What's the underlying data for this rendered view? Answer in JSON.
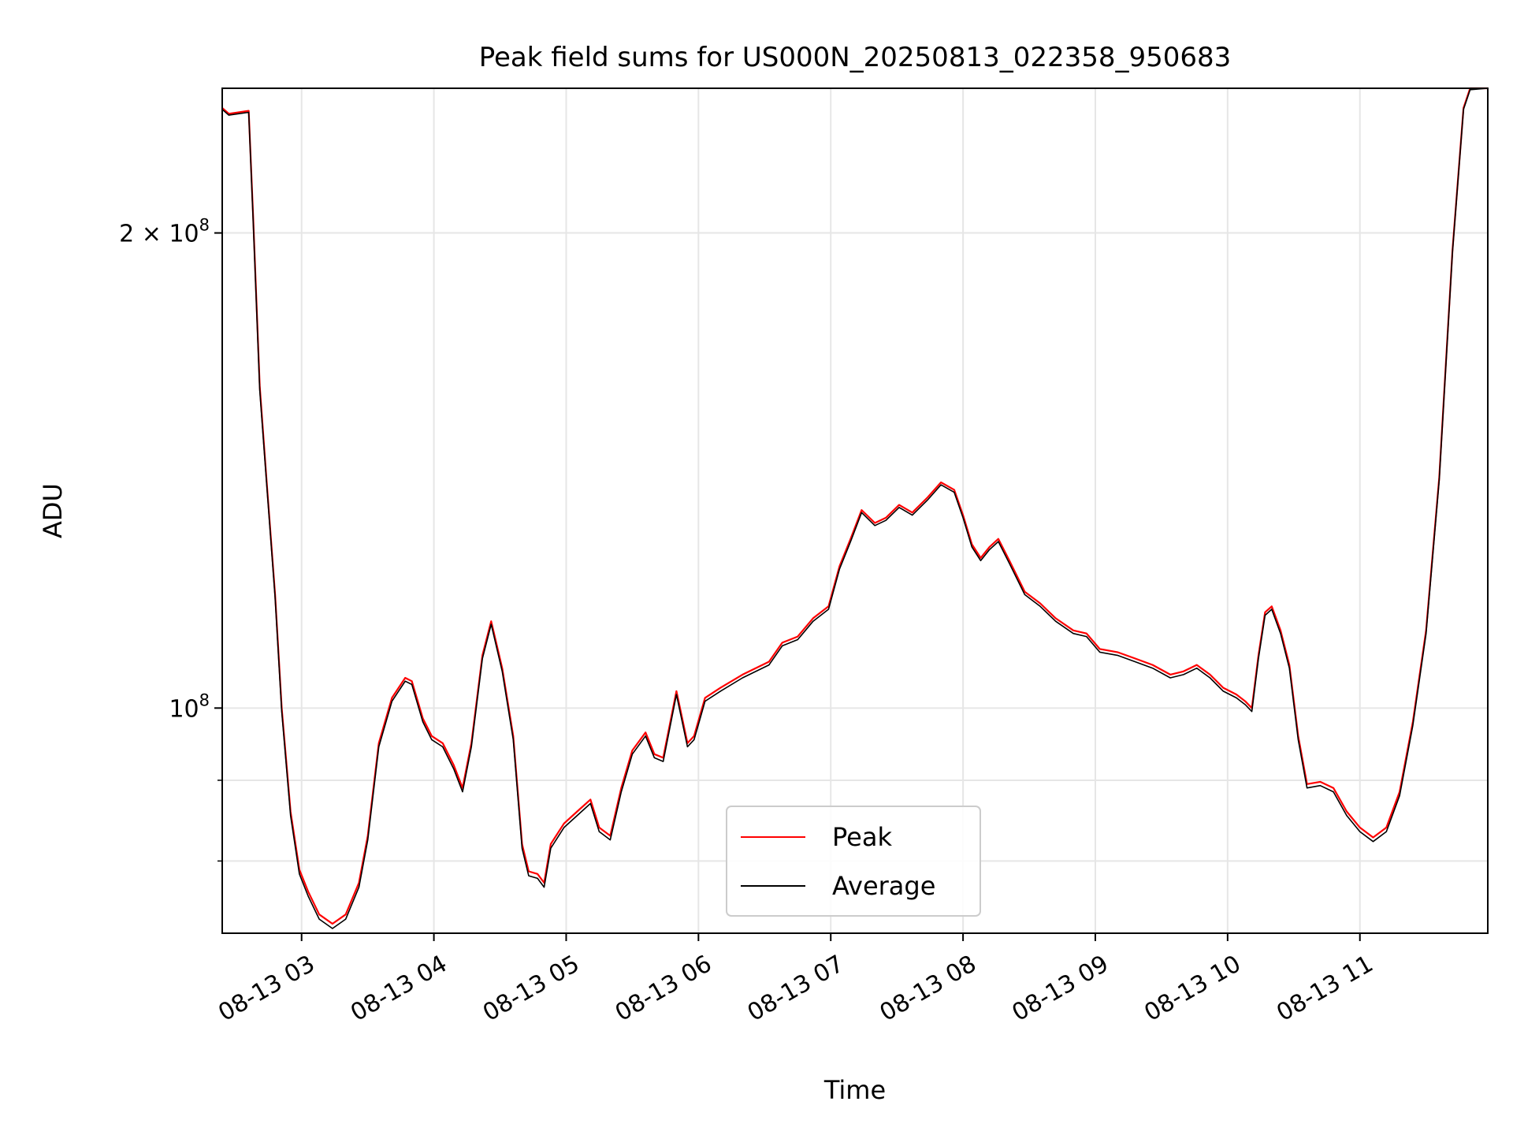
{
  "chart_data": {
    "type": "line",
    "title": "Peak field sums for US000N_20250813_022358_950683",
    "xlabel": "Time",
    "ylabel": "ADU",
    "x_scale": "time",
    "y_scale": "log",
    "xlim": [
      "2025-08-13 02:24",
      "2025-08-13 11:58"
    ],
    "ylim": [
      72000000,
      247000000
    ],
    "x_ticks": [
      "08-13 03",
      "08-13 04",
      "08-13 05",
      "08-13 06",
      "08-13 07",
      "08-13 08",
      "08-13 09",
      "08-13 10",
      "08-13 11"
    ],
    "y_ticks": [
      {
        "value": 100000000,
        "base": "10",
        "exp": "8",
        "coef": ""
      },
      {
        "value": 200000000,
        "base": "10",
        "exp": "8",
        "coef": "2 × "
      }
    ],
    "y_minor_ticks": [
      80000000,
      90000000
    ],
    "grid": true,
    "legend_position": "lower-center",
    "series": [
      {
        "name": "Peak",
        "color": "#ff0000",
        "points": [
          [
            "02:24",
            240000000
          ],
          [
            "02:27",
            238000000
          ],
          [
            "02:36",
            239000000
          ],
          [
            "02:38",
            205000000
          ],
          [
            "02:41",
            160000000
          ],
          [
            "02:44",
            140000000
          ],
          [
            "02:48",
            118000000
          ],
          [
            "02:51",
            100000000
          ],
          [
            "02:55",
            86000000
          ],
          [
            "02:59",
            79000000
          ],
          [
            "03:03",
            76500000
          ],
          [
            "03:08",
            74000000
          ],
          [
            "03:14",
            73000000
          ],
          [
            "03:20",
            74000000
          ],
          [
            "03:26",
            77500000
          ],
          [
            "03:30",
            83000000
          ],
          [
            "03:35",
            95000000
          ],
          [
            "03:41",
            101500000
          ],
          [
            "03:47",
            104500000
          ],
          [
            "03:50",
            104000000
          ],
          [
            "03:55",
            98500000
          ],
          [
            "03:59",
            96000000
          ],
          [
            "04:04",
            95000000
          ],
          [
            "04:09",
            92000000
          ],
          [
            "04:13",
            89000000
          ],
          [
            "04:17",
            95000000
          ],
          [
            "04:22",
            108000000
          ],
          [
            "04:26",
            113500000
          ],
          [
            "04:31",
            106000000
          ],
          [
            "04:36",
            96000000
          ],
          [
            "04:40",
            82000000
          ],
          [
            "04:43",
            78800000
          ],
          [
            "04:47",
            78500000
          ],
          [
            "04:50",
            77500000
          ],
          [
            "04:53",
            82000000
          ],
          [
            "04:59",
            84500000
          ],
          [
            "05:05",
            86000000
          ],
          [
            "05:11",
            87500000
          ],
          [
            "05:15",
            84000000
          ],
          [
            "05:20",
            83000000
          ],
          [
            "05:25",
            89000000
          ],
          [
            "05:30",
            94000000
          ],
          [
            "05:36",
            96500000
          ],
          [
            "05:40",
            93500000
          ],
          [
            "05:44",
            93000000
          ],
          [
            "05:50",
            102500000
          ],
          [
            "05:55",
            95000000
          ],
          [
            "05:58",
            96000000
          ],
          [
            "06:03",
            101500000
          ],
          [
            "06:10",
            103000000
          ],
          [
            "06:20",
            105000000
          ],
          [
            "06:32",
            107000000
          ],
          [
            "06:38",
            110000000
          ],
          [
            "06:45",
            111000000
          ],
          [
            "06:52",
            114000000
          ],
          [
            "06:59",
            116000000
          ],
          [
            "07:04",
            123000000
          ],
          [
            "07:09",
            128000000
          ],
          [
            "07:14",
            133500000
          ],
          [
            "07:20",
            131000000
          ],
          [
            "07:25",
            132000000
          ],
          [
            "07:31",
            134500000
          ],
          [
            "07:37",
            133000000
          ],
          [
            "07:44",
            136000000
          ],
          [
            "07:50",
            139000000
          ],
          [
            "07:56",
            137500000
          ],
          [
            "08:00",
            132500000
          ],
          [
            "08:04",
            127000000
          ],
          [
            "08:08",
            124500000
          ],
          [
            "08:12",
            126500000
          ],
          [
            "08:16",
            128000000
          ],
          [
            "08:21",
            124000000
          ],
          [
            "08:28",
            118500000
          ],
          [
            "08:35",
            116500000
          ],
          [
            "08:42",
            114000000
          ],
          [
            "08:50",
            112000000
          ],
          [
            "08:56",
            111500000
          ],
          [
            "09:02",
            109000000
          ],
          [
            "09:10",
            108500000
          ],
          [
            "09:18",
            107500000
          ],
          [
            "09:26",
            106500000
          ],
          [
            "09:34",
            105000000
          ],
          [
            "09:40",
            105500000
          ],
          [
            "09:46",
            106500000
          ],
          [
            "09:52",
            105000000
          ],
          [
            "09:58",
            103000000
          ],
          [
            "10:04",
            102000000
          ],
          [
            "10:08",
            101000000
          ],
          [
            "10:11",
            100000000
          ],
          [
            "10:14",
            108000000
          ],
          [
            "10:17",
            115000000
          ],
          [
            "10:20",
            116000000
          ],
          [
            "10:24",
            112000000
          ],
          [
            "10:28",
            106500000
          ],
          [
            "10:32",
            96000000
          ],
          [
            "10:36",
            89500000
          ],
          [
            "10:42",
            89800000
          ],
          [
            "10:48",
            89000000
          ],
          [
            "10:54",
            86000000
          ],
          [
            "11:00",
            84000000
          ],
          [
            "11:06",
            82800000
          ],
          [
            "11:12",
            84000000
          ],
          [
            "11:18",
            88500000
          ],
          [
            "11:24",
            98000000
          ],
          [
            "11:30",
            112000000
          ],
          [
            "11:36",
            140000000
          ],
          [
            "11:42",
            195000000
          ],
          [
            "11:47",
            240000000
          ],
          [
            "11:50",
            247000000
          ],
          [
            "11:58",
            247000000
          ]
        ]
      },
      {
        "name": "Average",
        "color": "#000000",
        "points": [
          [
            "02:24",
            239500000
          ],
          [
            "02:27",
            237500000
          ],
          [
            "02:36",
            238500000
          ],
          [
            "02:38",
            204000000
          ],
          [
            "02:41",
            159000000
          ],
          [
            "02:44",
            139500000
          ],
          [
            "02:48",
            117500000
          ],
          [
            "02:51",
            99500000
          ],
          [
            "02:55",
            85500000
          ],
          [
            "02:59",
            78500000
          ],
          [
            "03:03",
            76000000
          ],
          [
            "03:08",
            73500000
          ],
          [
            "03:14",
            72500000
          ],
          [
            "03:20",
            73500000
          ],
          [
            "03:26",
            77000000
          ],
          [
            "03:30",
            82500000
          ],
          [
            "03:35",
            94500000
          ],
          [
            "03:41",
            101000000
          ],
          [
            "03:47",
            104000000
          ],
          [
            "03:50",
            103500000
          ],
          [
            "03:55",
            98000000
          ],
          [
            "03:59",
            95500000
          ],
          [
            "04:04",
            94500000
          ],
          [
            "04:09",
            91500000
          ],
          [
            "04:13",
            88500000
          ],
          [
            "04:17",
            94500000
          ],
          [
            "04:22",
            107500000
          ],
          [
            "04:26",
            113000000
          ],
          [
            "04:31",
            105500000
          ],
          [
            "04:36",
            95500000
          ],
          [
            "04:40",
            81500000
          ],
          [
            "04:43",
            78300000
          ],
          [
            "04:47",
            78000000
          ],
          [
            "04:50",
            77000000
          ],
          [
            "04:53",
            81500000
          ],
          [
            "04:59",
            84000000
          ],
          [
            "05:05",
            85500000
          ],
          [
            "05:11",
            87000000
          ],
          [
            "05:15",
            83500000
          ],
          [
            "05:20",
            82500000
          ],
          [
            "05:25",
            88500000
          ],
          [
            "05:30",
            93500000
          ],
          [
            "05:36",
            96000000
          ],
          [
            "05:40",
            93000000
          ],
          [
            "05:44",
            92500000
          ],
          [
            "05:50",
            102000000
          ],
          [
            "05:55",
            94500000
          ],
          [
            "05:58",
            95500000
          ],
          [
            "06:03",
            101000000
          ],
          [
            "06:10",
            102500000
          ],
          [
            "06:20",
            104500000
          ],
          [
            "06:32",
            106500000
          ],
          [
            "06:38",
            109500000
          ],
          [
            "06:45",
            110500000
          ],
          [
            "06:52",
            113500000
          ],
          [
            "06:59",
            115500000
          ],
          [
            "07:04",
            122500000
          ],
          [
            "07:09",
            127500000
          ],
          [
            "07:14",
            133000000
          ],
          [
            "07:20",
            130500000
          ],
          [
            "07:25",
            131500000
          ],
          [
            "07:31",
            134000000
          ],
          [
            "07:37",
            132500000
          ],
          [
            "07:44",
            135500000
          ],
          [
            "07:50",
            138500000
          ],
          [
            "07:56",
            137000000
          ],
          [
            "08:00",
            132000000
          ],
          [
            "08:04",
            126500000
          ],
          [
            "08:08",
            124000000
          ],
          [
            "08:12",
            126000000
          ],
          [
            "08:16",
            127500000
          ],
          [
            "08:21",
            123500000
          ],
          [
            "08:28",
            118000000
          ],
          [
            "08:35",
            116000000
          ],
          [
            "08:42",
            113500000
          ],
          [
            "08:50",
            111500000
          ],
          [
            "08:56",
            111000000
          ],
          [
            "09:02",
            108500000
          ],
          [
            "09:10",
            108000000
          ],
          [
            "09:18",
            107000000
          ],
          [
            "09:26",
            106000000
          ],
          [
            "09:34",
            104500000
          ],
          [
            "09:40",
            105000000
          ],
          [
            "09:46",
            106000000
          ],
          [
            "09:52",
            104500000
          ],
          [
            "09:58",
            102500000
          ],
          [
            "10:04",
            101500000
          ],
          [
            "10:08",
            100500000
          ],
          [
            "10:11",
            99500000
          ],
          [
            "10:14",
            107500000
          ],
          [
            "10:17",
            114500000
          ],
          [
            "10:20",
            115500000
          ],
          [
            "10:24",
            111500000
          ],
          [
            "10:28",
            106000000
          ],
          [
            "10:32",
            95500000
          ],
          [
            "10:36",
            89000000
          ],
          [
            "10:42",
            89300000
          ],
          [
            "10:48",
            88500000
          ],
          [
            "10:54",
            85500000
          ],
          [
            "11:00",
            83500000
          ],
          [
            "11:06",
            82300000
          ],
          [
            "11:12",
            83500000
          ],
          [
            "11:18",
            88000000
          ],
          [
            "11:24",
            97500000
          ],
          [
            "11:30",
            111500000
          ],
          [
            "11:36",
            139500000
          ],
          [
            "11:42",
            194500000
          ],
          [
            "11:47",
            239500000
          ],
          [
            "11:50",
            246500000
          ],
          [
            "11:58",
            247000000
          ]
        ]
      }
    ]
  }
}
